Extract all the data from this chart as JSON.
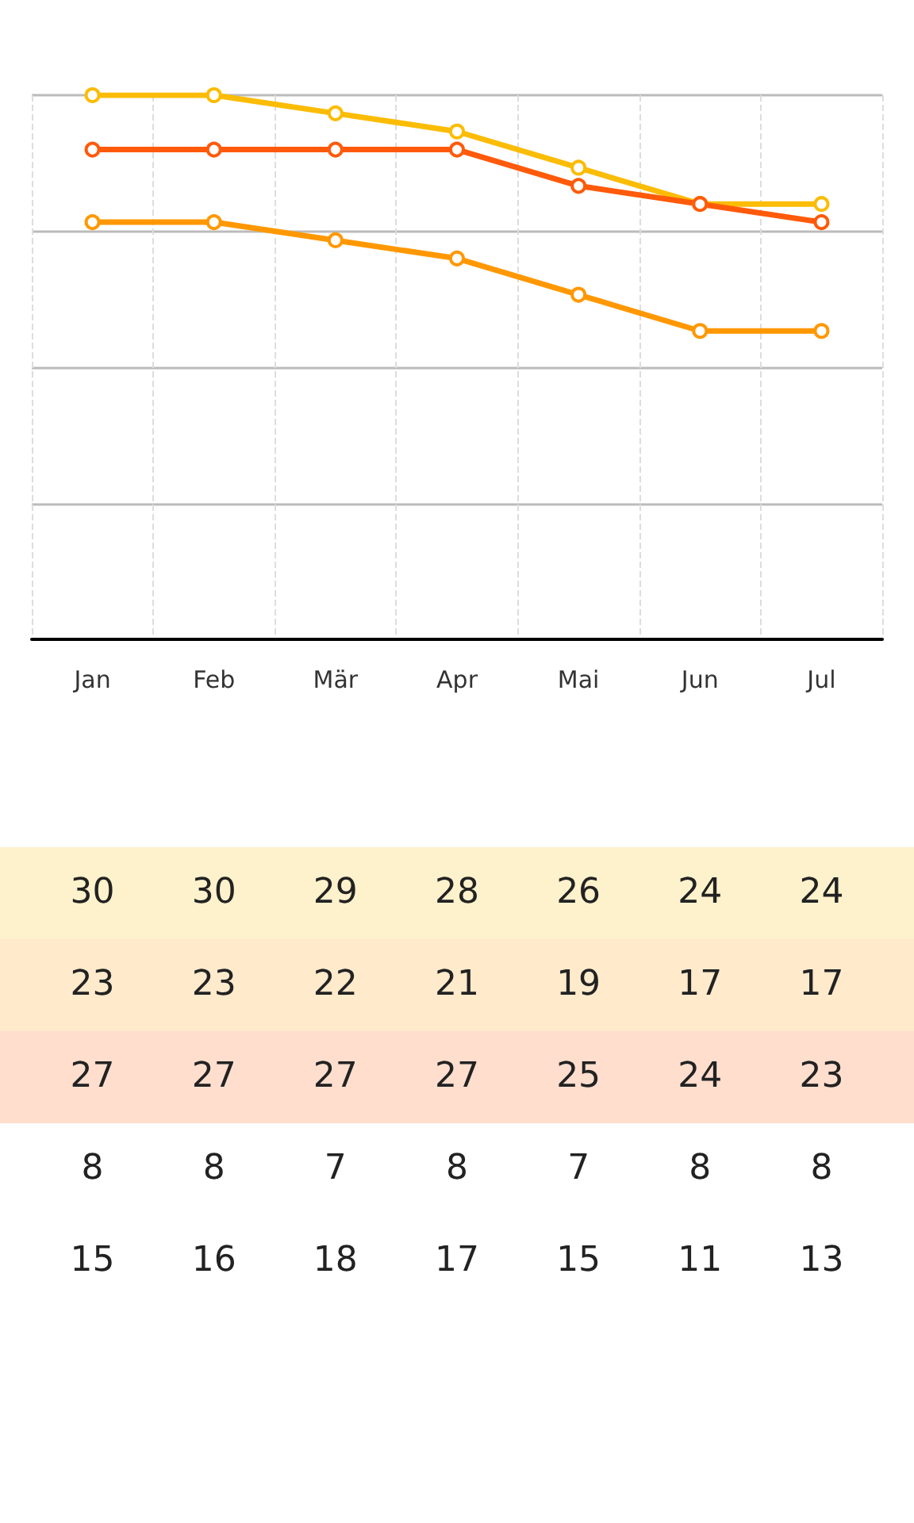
{
  "chart_data": {
    "type": "line",
    "categories": [
      "Jan",
      "Feb",
      "Mär",
      "Apr",
      "Mai",
      "Jun",
      "Jul"
    ],
    "series": [
      {
        "color": "#fbbc05",
        "values": [
          30,
          30,
          29,
          28,
          26,
          24,
          24
        ]
      },
      {
        "color": "#ff9800",
        "values": [
          23,
          23,
          22,
          21,
          19,
          17,
          17
        ]
      },
      {
        "color": "#ff5a0a",
        "values": [
          27,
          27,
          27,
          27,
          25,
          24,
          23
        ]
      }
    ],
    "annotations": [
      "8",
      "8",
      "7",
      "8",
      "7",
      "8",
      "8",
      "15",
      "16",
      "18",
      "17",
      "15",
      "11",
      "13"
    ],
    "ylim": [
      0,
      30
    ],
    "yticks": [
      {
        "value": 0,
        "label": null
      },
      {
        "value": 7.5,
        "label": null
      },
      {
        "value": 15,
        "label": null
      },
      {
        "value": 22.5,
        "label": null
      },
      {
        "value": 30,
        "label": null
      }
    ],
    "tick_labels": "x",
    "grid": true,
    "marker": "circle",
    "line_style": "solid",
    "data_labels": true
  }
}
